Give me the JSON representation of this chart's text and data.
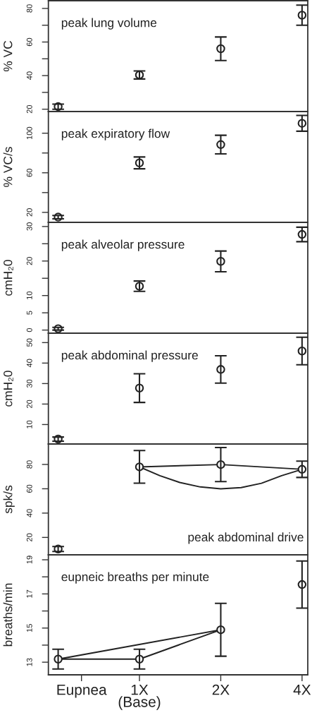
{
  "chart_data": [
    {
      "type": "scatter",
      "title": "peak lung volume",
      "ylabel": "% VC",
      "log": "x",
      "xlim": [
        0.46,
        4.2
      ],
      "ylim": [
        18.6,
        84.6
      ],
      "yticks": [
        20,
        {
          "value": 30,
          "label": null
        },
        40,
        {
          "value": 50,
          "label": null
        },
        60,
        {
          "value": 70,
          "label": null
        },
        80
      ],
      "tick_labels": "y",
      "marker": "circle",
      "series": [
        {
          "color": "#222222",
          "x": [
            0.5,
            1,
            2,
            4
          ],
          "values": [
            21.5,
            40.4,
            56,
            76
          ],
          "errors": [
            1.5,
            2.4,
            7,
            6
          ]
        }
      ]
    },
    {
      "type": "scatter",
      "title": "peak expiratory flow",
      "ylabel": "% VC/s",
      "log": "x",
      "xlim": [
        0.46,
        4.2
      ],
      "ylim": [
        9.9,
        121.9
      ],
      "yticks": [
        20,
        {
          "value": 40,
          "label": null
        },
        60,
        {
          "value": 80,
          "label": null
        },
        100
      ],
      "tick_labels": "y",
      "marker": "circle",
      "series": [
        {
          "color": "#222222",
          "x": [
            0.5,
            1,
            2,
            4
          ],
          "values": [
            15.2,
            70,
            88.5,
            110
          ],
          "errors": [
            1.7,
            6,
            9.4,
            8
          ]
        }
      ]
    },
    {
      "type": "scatter",
      "title": "peak alveolar pressure",
      "ylabel": "cmH₂0",
      "log": "x",
      "xlim": [
        0.46,
        4.2
      ],
      "ylim": [
        -0.9,
        31.2
      ],
      "yticks": [
        0,
        5,
        10,
        {
          "value": 15,
          "label": null
        },
        20,
        {
          "value": 25,
          "label": null
        },
        30
      ],
      "tick_labels": "y",
      "marker": "circle",
      "series": [
        {
          "color": "#222222",
          "x": [
            0.5,
            1,
            2,
            4
          ],
          "values": [
            0.4,
            12.7,
            19.9,
            27.7
          ],
          "errors": [
            0.4,
            1.5,
            3,
            2.1
          ]
        }
      ]
    },
    {
      "type": "scatter",
      "title": "peak abdominal pressure",
      "ylabel": "cmH₂0",
      "log": "x",
      "xlim": [
        0.46,
        4.2
      ],
      "ylim": [
        0.5,
        54.6
      ],
      "yticks": [
        10,
        20,
        30,
        40,
        50
      ],
      "tick_labels": "y",
      "marker": "circle",
      "series": [
        {
          "color": "#222222",
          "x": [
            0.5,
            1,
            2,
            4
          ],
          "values": [
            2.9,
            27.8,
            36.9,
            45.9
          ],
          "errors": [
            1,
            7,
            6.7,
            6.7
          ]
        }
      ]
    },
    {
      "type": "scatter",
      "title": "peak abdominal drive",
      "ylabel": "spk/s",
      "log": "x",
      "xlim": [
        0.46,
        4.2
      ],
      "ylim": [
        5.7,
        96.8
      ],
      "yticks": [
        20,
        40,
        60,
        80
      ],
      "tick_labels": "y",
      "marker": "circle",
      "series": [
        {
          "color": "#222222",
          "x": [
            0.5,
            1,
            2,
            4
          ],
          "values": [
            10.5,
            78,
            79.9,
            76
          ],
          "errors": [
            2,
            13.4,
            14,
            6.7
          ]
        },
        {
          "type": "line",
          "marker": "none",
          "color": "#222222",
          "x": [
            1,
            2,
            4
          ],
          "values": [
            78,
            79.9,
            76
          ]
        },
        {
          "type": "line",
          "marker": "none",
          "color": "#222222",
          "x": [
            1,
            1.19,
            1.41,
            1.68,
            2,
            2.38,
            2.83,
            3.36,
            4
          ],
          "values": [
            78,
            70.8,
            65.2,
            61.5,
            60,
            61,
            64.5,
            70.8,
            76
          ]
        }
      ]
    },
    {
      "type": "scatter",
      "title": "eupneic breaths per minute",
      "ylabel": "breaths/min",
      "log": "x",
      "xlim": [
        0.46,
        4.2
      ],
      "xticks": [
        {
          "value": 0.61,
          "label": "Eupnea"
        },
        {
          "value": 1,
          "label": "1X\n(Base)"
        },
        {
          "value": 2,
          "label": "2X"
        },
        {
          "value": 4,
          "label": "4X"
        }
      ],
      "ylim": [
        12.26,
        19.29
      ],
      "yticks": [
        13,
        {
          "value": 14,
          "label": null
        },
        15,
        {
          "value": 16,
          "label": null
        },
        17,
        {
          "value": 18,
          "label": null
        },
        19
      ],
      "marker": "circle",
      "series": [
        {
          "color": "#222222",
          "x": [
            0.5,
            1,
            2,
            4
          ],
          "values": [
            13.18,
            13.18,
            14.9,
            17.55
          ],
          "errors": [
            0.58,
            0.58,
            1.55,
            1.38
          ]
        },
        {
          "type": "line",
          "marker": "none",
          "color": "#222222",
          "x": [
            0.5,
            1,
            2
          ],
          "values": [
            13.18,
            13.18,
            14.9
          ]
        },
        {
          "type": "line",
          "marker": "none",
          "color": "#222222",
          "x": [
            0.5,
            2
          ],
          "values": [
            13.18,
            14.9
          ]
        }
      ]
    }
  ]
}
